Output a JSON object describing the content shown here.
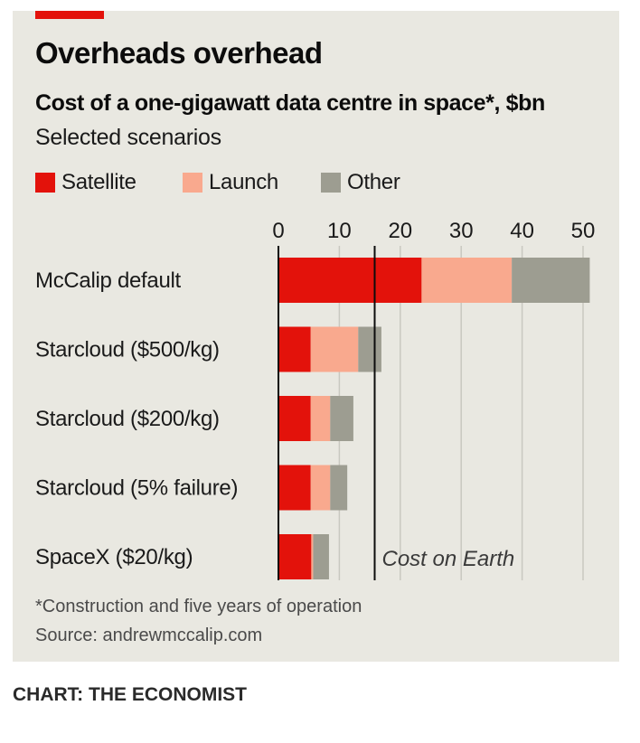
{
  "header": {
    "title": "Overheads overhead",
    "subtitle": "Cost of a one-gigawatt data centre in space*, $bn",
    "subsubtitle": "Selected scenarios"
  },
  "footer": {
    "footnote": "*Construction and five years of operation",
    "source": "Source: andrewmccalip.com",
    "credit": "CHART: THE ECONOMIST"
  },
  "colors": {
    "satellite": "#e3120b",
    "launch": "#f9a98e",
    "other": "#9d9d91",
    "accent": "#e3120b"
  },
  "chart_data": {
    "type": "bar",
    "orientation": "horizontal",
    "stacked": true,
    "title": "Cost of a one-gigawatt data centre in space*, $bn",
    "subtitle": "Selected scenarios",
    "categories": [
      "McCalip default",
      "Starcloud ($500/kg)",
      "Starcloud ($200/kg)",
      "Starcloud (5% failure)",
      "SpaceX ($20/kg)"
    ],
    "series": [
      {
        "name": "Satellite",
        "values": [
          23.5,
          5.3,
          5.3,
          5.3,
          5.4
        ]
      },
      {
        "name": "Launch",
        "values": [
          14.8,
          7.8,
          3.2,
          3.2,
          0.3
        ]
      },
      {
        "name": "Other",
        "values": [
          12.8,
          3.8,
          3.8,
          2.8,
          2.6
        ]
      }
    ],
    "xlim": [
      0,
      50
    ],
    "xticks": [
      0,
      10,
      20,
      30,
      40,
      50
    ],
    "xtick_labels": [
      "0",
      "10",
      "20",
      "30",
      "40",
      "50"
    ],
    "reference_line": {
      "value": 15.8,
      "label": "Cost on Earth"
    },
    "xlabel": "",
    "ylabel": "",
    "grid": true,
    "legend_position": "top"
  }
}
